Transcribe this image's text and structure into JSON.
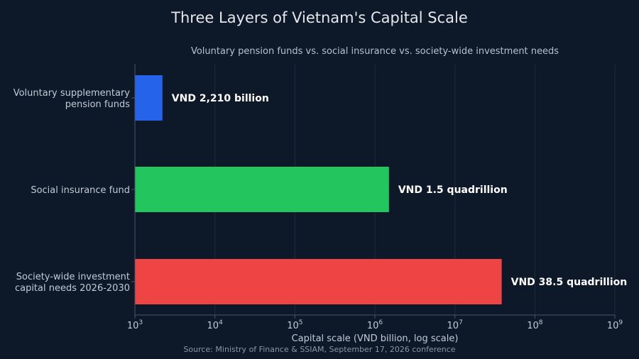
{
  "colors": {
    "background": "#0d1829",
    "title": "#e5e7eb",
    "subtitle": "#b7c0cc",
    "tick_label": "#c3cad4",
    "axis": "#4a5568",
    "grid": "#1f2b3b",
    "data_label": "#ffffff",
    "source": "#8b95a3"
  },
  "chart_data": {
    "type": "bar",
    "orientation": "horizontal",
    "title": "Three Layers of Vietnam's Capital Scale",
    "subtitle": "Voluntary pension funds vs. social insurance vs. society-wide investment needs",
    "xlabel": "Capital scale (VND billion, log scale)",
    "ylabel": "",
    "x_scale": "log",
    "xlim": [
      1000,
      1000000000
    ],
    "grid": true,
    "categories": [
      [
        "Voluntary supplementary",
        "pension funds"
      ],
      [
        "Social insurance fund"
      ],
      [
        "Society-wide investment",
        "capital needs 2026-2030"
      ]
    ],
    "values": [
      2210,
      1500000,
      38500000
    ],
    "bar_colors": [
      "#2563eb",
      "#22c55e",
      "#ef4444"
    ],
    "data_labels": [
      "VND 2,210 billion",
      "VND 1.5 quadrillion",
      "VND 38.5 quadrillion"
    ],
    "x_ticks": [
      {
        "value": 1000,
        "base": "10",
        "exp": "3"
      },
      {
        "value": 10000,
        "base": "10",
        "exp": "4"
      },
      {
        "value": 100000,
        "base": "10",
        "exp": "5"
      },
      {
        "value": 1000000,
        "base": "10",
        "exp": "6"
      },
      {
        "value": 10000000,
        "base": "10",
        "exp": "7"
      },
      {
        "value": 100000000,
        "base": "10",
        "exp": "8"
      },
      {
        "value": 1000000000,
        "base": "10",
        "exp": "9"
      }
    ],
    "source": "Source: Ministry of Finance & SSIAM, September 17, 2026 conference"
  }
}
